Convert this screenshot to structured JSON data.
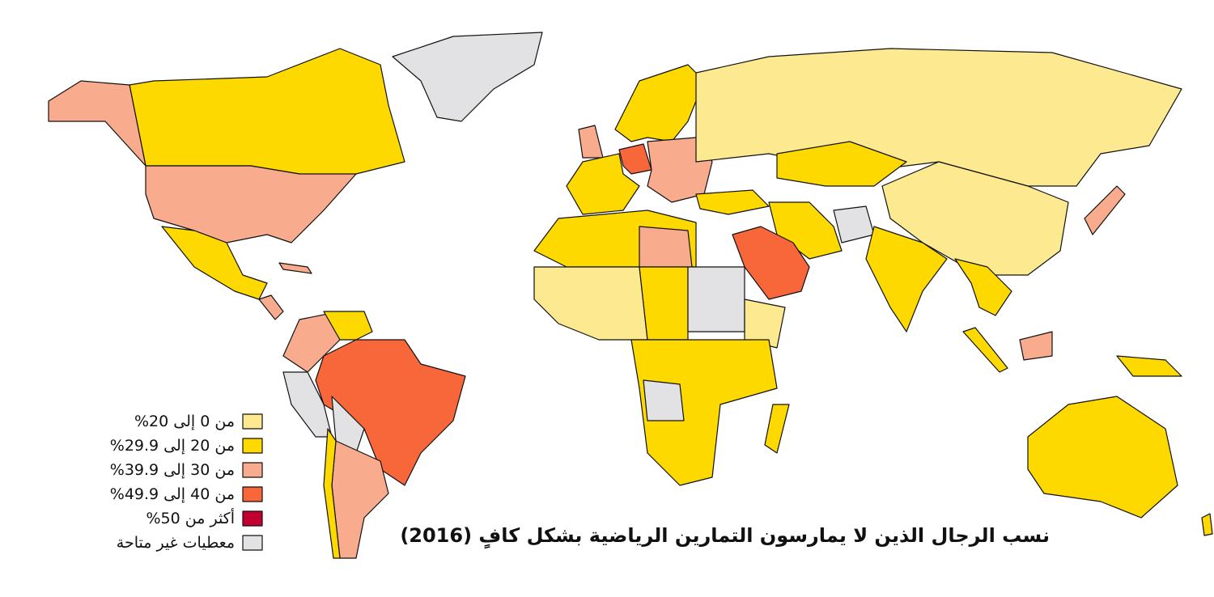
{
  "title": "نسب الرجال الذين لا يمارسون التمارين الرياضية بشكل كافٍ (2016)",
  "legend": [
    {
      "label": "من 0 إلى 20%",
      "color": "#fde98f"
    },
    {
      "label": "من 20 إلى 29.9%",
      "color": "#fdd900"
    },
    {
      "label": "من 30 إلى 39.9%",
      "color": "#f9ab8e"
    },
    {
      "label": "من 40 إلى 49.9%",
      "color": "#f8673a"
    },
    {
      "label": "أكثر من 50%",
      "color": "#c2002f"
    },
    {
      "label": "معطيات غير متاحة",
      "color": "#e2e2e4"
    }
  ]
}
